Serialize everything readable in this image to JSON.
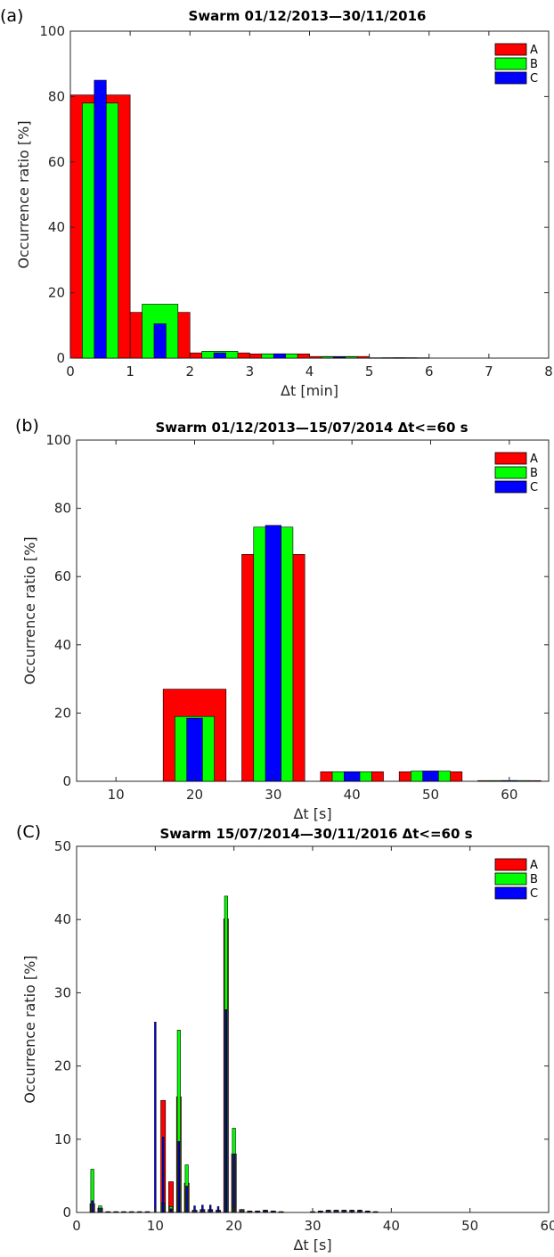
{
  "chart_data": [
    {
      "panel_label": "(a)",
      "type": "bar",
      "title": "Swarm    01/12/2013—30/11/2016",
      "xlabel": "Δt [min]",
      "ylabel": "Occurrence ratio [%]",
      "xlim": [
        0,
        8
      ],
      "ylim": [
        0,
        100
      ],
      "xticks": [
        "0",
        "1",
        "2",
        "3",
        "4",
        "5",
        "6",
        "7",
        "8"
      ],
      "yticks": [
        "0",
        "20",
        "40",
        "60",
        "80",
        "100"
      ],
      "x": [
        0.5,
        1.5,
        2.5,
        3.5,
        4.5,
        5.5,
        6.5,
        7.5
      ],
      "bar_widths": [
        1.0,
        0.6,
        0.2
      ],
      "legend": "top-right",
      "series": [
        {
          "name": "A",
          "color": "#ff0000",
          "values": [
            80.5,
            14.0,
            1.6,
            1.3,
            0.5,
            0.1,
            0,
            0
          ]
        },
        {
          "name": "B",
          "color": "#00ff00",
          "values": [
            78.0,
            16.5,
            2.1,
            1.3,
            0.4,
            0.1,
            0,
            0
          ]
        },
        {
          "name": "C",
          "color": "#0000ff",
          "values": [
            85.0,
            10.5,
            1.6,
            1.3,
            0.3,
            0.1,
            0,
            0
          ]
        }
      ]
    },
    {
      "panel_label": "(b)",
      "type": "bar",
      "title": "Swarm    01/12/2013—15/07/2014    Δt<=60 s",
      "xlabel": "Δt [s]",
      "ylabel": "Occurrence ratio [%]",
      "xlim": [
        5,
        65
      ],
      "ylim": [
        0,
        100
      ],
      "xticks": [
        "10",
        "20",
        "30",
        "40",
        "50",
        "60"
      ],
      "xtick_values": [
        10,
        20,
        30,
        40,
        50,
        60
      ],
      "yticks": [
        "0",
        "20",
        "40",
        "60",
        "80",
        "100"
      ],
      "x": [
        10,
        20,
        30,
        40,
        50,
        60
      ],
      "bar_widths": [
        8,
        5,
        2
      ],
      "legend": "top-right",
      "series": [
        {
          "name": "A",
          "color": "#ff0000",
          "values": [
            0,
            27.0,
            66.5,
            2.8,
            2.8,
            0.2
          ]
        },
        {
          "name": "B",
          "color": "#00ff00",
          "values": [
            0,
            19.0,
            74.5,
            2.8,
            3.0,
            0.2
          ]
        },
        {
          "name": "C",
          "color": "#0000ff",
          "values": [
            0,
            18.5,
            75.0,
            2.8,
            3.0,
            0.2
          ]
        }
      ]
    },
    {
      "panel_label": "(C)",
      "type": "bar",
      "title": "Swarm    15/07/2014—30/11/2016    Δt<=60 s",
      "xlabel": "Δt [s]",
      "ylabel": "Occurrence ratio [%]",
      "xlim": [
        0,
        60
      ],
      "ylim": [
        0,
        50
      ],
      "xticks": [
        "0",
        "10",
        "20",
        "30",
        "40",
        "50",
        "60"
      ],
      "yticks": [
        "0",
        "10",
        "20",
        "30",
        "40",
        "50"
      ],
      "x": [
        2,
        3,
        4,
        5,
        6,
        7,
        8,
        9,
        10,
        11,
        12,
        13,
        14,
        15,
        16,
        17,
        18,
        19,
        20,
        21,
        22,
        23,
        24,
        25,
        26,
        27,
        28,
        29,
        30,
        31,
        32,
        33,
        34,
        35,
        36,
        37,
        38
      ],
      "bar_widths": [
        0.6,
        0.4,
        0.2
      ],
      "legend": "top-right",
      "series": [
        {
          "name": "A",
          "color": "#ff0000",
          "values": [
            1.2,
            0.6,
            0.1,
            0.1,
            0.1,
            0.1,
            0.1,
            0.1,
            0,
            15.3,
            4.2,
            15.8,
            4.0,
            0.3,
            0.4,
            0.4,
            0.3,
            40.1,
            8.0,
            0.4,
            0.2,
            0.2,
            0.3,
            0.2,
            0.1,
            0,
            0,
            0,
            0.1,
            0.2,
            0.3,
            0.3,
            0.3,
            0.3,
            0.3,
            0.2,
            0.1
          ]
        },
        {
          "name": "B",
          "color": "#00ff00",
          "values": [
            5.9,
            0.9,
            0.1,
            0.1,
            0.1,
            0.1,
            0.1,
            0.1,
            0,
            1.3,
            0.8,
            24.9,
            6.5,
            0.3,
            0.3,
            0.3,
            0.3,
            43.2,
            11.5,
            0.4,
            0.2,
            0.2,
            0.3,
            0.2,
            0.1,
            0,
            0,
            0,
            0.1,
            0.2,
            0.3,
            0.3,
            0.3,
            0.3,
            0.3,
            0.2,
            0.1
          ]
        },
        {
          "name": "C",
          "color": "#0000ff",
          "values": [
            1.6,
            0.6,
            0.1,
            0.1,
            0.1,
            0.1,
            0.1,
            0.1,
            26.0,
            10.3,
            0.5,
            9.7,
            3.6,
            0.9,
            1.0,
            1.0,
            0.8,
            27.7,
            8.0,
            0.3,
            0.2,
            0.2,
            0.3,
            0.2,
            0.1,
            0,
            0,
            0,
            0.1,
            0.2,
            0.3,
            0.3,
            0.3,
            0.3,
            0.3,
            0.2,
            0.1
          ]
        }
      ]
    }
  ]
}
